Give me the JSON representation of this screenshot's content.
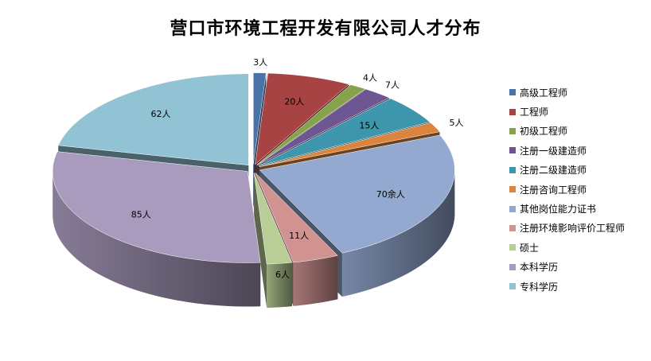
{
  "chart_data": {
    "type": "pie",
    "style": "3d-exploded",
    "title": "营口市环境工程开发有限公司人才分布",
    "legend_position": "right",
    "slices": [
      {
        "name": "高级工程师",
        "value": 3,
        "label": "3人",
        "color": "#4A73A8"
      },
      {
        "name": "工程师",
        "value": 20,
        "label": "20人",
        "color": "#A84343"
      },
      {
        "name": "初级工程师",
        "value": 4,
        "label": "4人",
        "color": "#86A24A"
      },
      {
        "name": "注册一级建造师",
        "value": 7,
        "label": "7人",
        "color": "#6E5693"
      },
      {
        "name": "注册二级建造师",
        "value": 15,
        "label": "15人",
        "color": "#3E96AD"
      },
      {
        "name": "注册咨询工程师",
        "value": 5,
        "label": "5人",
        "color": "#DB843D"
      },
      {
        "name": "其他岗位能力证书",
        "value": 70,
        "label": "70余人",
        "color": "#93A9CF"
      },
      {
        "name": "注册环境影响评价工程师",
        "value": 11,
        "label": "11人",
        "color": "#D19392"
      },
      {
        "name": "硕士",
        "value": 6,
        "label": "6人",
        "color": "#B9CD96"
      },
      {
        "name": "本科学历",
        "value": 85,
        "label": "85人",
        "color": "#A99BBD"
      },
      {
        "name": "专科学历",
        "value": 62,
        "label": "62人",
        "color": "#92C3D4"
      }
    ]
  }
}
